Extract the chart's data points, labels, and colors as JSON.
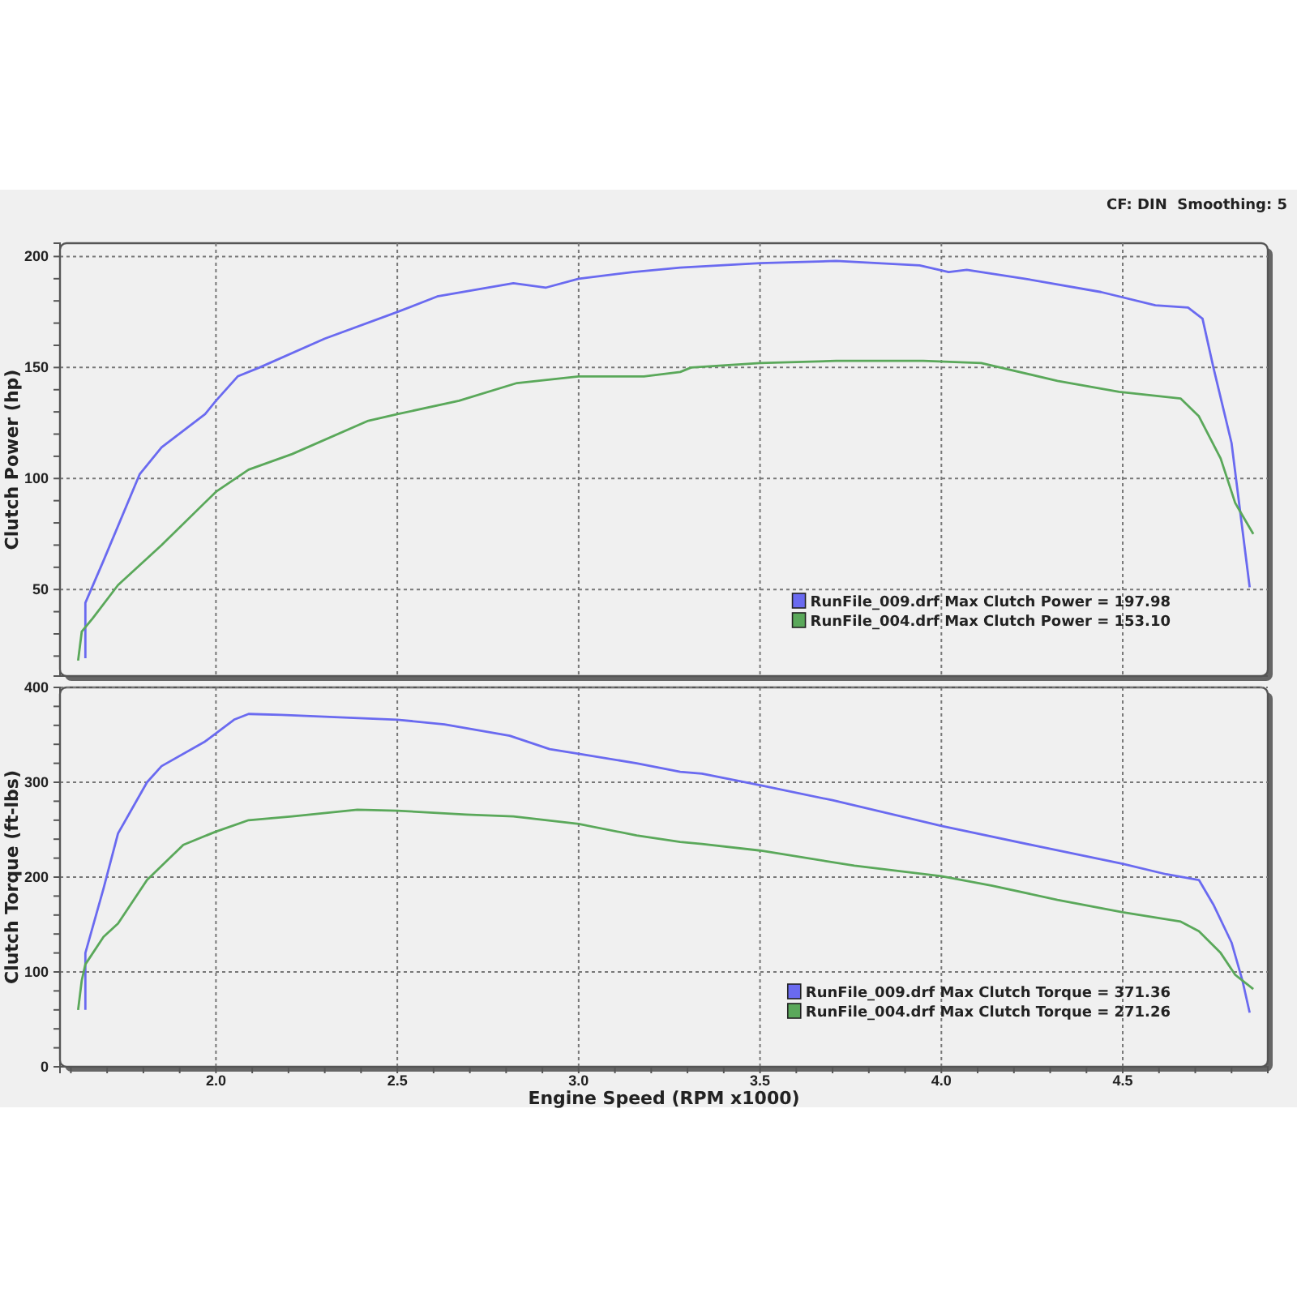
{
  "chart_data": [
    {
      "type": "line",
      "ylabel": "Clutch Power (hp)",
      "annotations": [
        "CF: DIN  Smoothing: 5"
      ],
      "xlim": [
        1.57,
        4.9
      ],
      "ylim": [
        11,
        206
      ],
      "xticks": [
        2,
        2.5,
        3,
        3.5,
        4,
        4.5
      ],
      "yticks": [
        {
          "value": 20,
          "label": null
        },
        {
          "value": 30,
          "label": null
        },
        {
          "value": 40,
          "label": null
        },
        50,
        {
          "value": 60,
          "label": null
        },
        {
          "value": 70,
          "label": null
        },
        {
          "value": 80,
          "label": null
        },
        {
          "value": 90,
          "label": null
        },
        100,
        {
          "value": 110,
          "label": null
        },
        {
          "value": 120,
          "label": null
        },
        {
          "value": 130,
          "label": null
        },
        {
          "value": 140,
          "label": null
        },
        150,
        {
          "value": 160,
          "label": null
        },
        {
          "value": 170,
          "label": null
        },
        {
          "value": 180,
          "label": null
        },
        {
          "value": 190,
          "label": null
        },
        200
      ],
      "tick_labels": "y",
      "grid": true,
      "legend": "bottom right",
      "series": [
        {
          "name": "RunFile_009.drf Max Clutch Power = 197.98",
          "color": "#6a6af0",
          "x": [
            1.64,
            1.64,
            1.69,
            1.79,
            1.85,
            1.97,
            2.0,
            2.06,
            2.12,
            2.3,
            2.5,
            2.61,
            2.82,
            2.91,
            3.0,
            3.15,
            3.28,
            3.5,
            3.71,
            3.94,
            4.02,
            4.07,
            4.23,
            4.44,
            4.59,
            4.68,
            4.72,
            4.75,
            4.8,
            4.85
          ],
          "values": [
            19,
            44,
            63,
            102,
            114,
            129,
            135,
            146,
            150,
            163,
            175,
            182,
            188,
            186,
            190,
            193,
            195,
            197,
            198,
            196,
            193,
            194,
            190,
            184,
            178,
            177,
            172,
            150,
            116,
            51
          ]
        },
        {
          "name": "RunFile_004.drf Max Clutch Power = 153.10",
          "color": "#5aa85a",
          "x": [
            1.62,
            1.63,
            1.66,
            1.73,
            1.85,
            2.0,
            2.09,
            2.21,
            2.42,
            2.5,
            2.67,
            2.83,
            3.0,
            3.13,
            3.18,
            3.28,
            3.31,
            3.5,
            3.71,
            3.95,
            4.11,
            4.32,
            4.49,
            4.66,
            4.71,
            4.77,
            4.81,
            4.86
          ],
          "values": [
            18,
            31,
            37,
            52,
            70,
            94,
            104,
            111,
            126,
            129,
            135,
            143,
            146,
            146,
            146,
            148,
            150,
            152,
            153,
            153,
            152,
            144,
            139,
            136,
            128,
            109,
            89,
            75
          ]
        }
      ]
    },
    {
      "type": "line",
      "ylabel": "Clutch Torque (ft-lbs)",
      "xlabel": "Engine Speed (RPM x1000)",
      "xlim": [
        1.57,
        4.9
      ],
      "ylim": [
        0,
        400
      ],
      "xticks": [
        {
          "value": 1.6,
          "label": null
        },
        {
          "value": 1.7,
          "label": null
        },
        {
          "value": 1.8,
          "label": null
        },
        {
          "value": 1.9,
          "label": null
        },
        {
          "value": 2,
          "label": "2.0"
        },
        {
          "value": 2.1,
          "label": null
        },
        {
          "value": 2.2,
          "label": null
        },
        {
          "value": 2.3,
          "label": null
        },
        {
          "value": 2.4,
          "label": null
        },
        2.5,
        {
          "value": 2.6,
          "label": null
        },
        {
          "value": 2.7,
          "label": null
        },
        {
          "value": 2.8,
          "label": null
        },
        {
          "value": 2.9,
          "label": null
        },
        {
          "value": 3,
          "label": "3.0"
        },
        {
          "value": 3.1,
          "label": null
        },
        {
          "value": 3.2,
          "label": null
        },
        {
          "value": 3.3,
          "label": null
        },
        {
          "value": 3.4,
          "label": null
        },
        3.5,
        {
          "value": 3.6,
          "label": null
        },
        {
          "value": 3.7,
          "label": null
        },
        {
          "value": 3.8,
          "label": null
        },
        {
          "value": 3.9,
          "label": null
        },
        {
          "value": 4,
          "label": "4.0"
        },
        {
          "value": 4.1,
          "label": null
        },
        {
          "value": 4.2,
          "label": null
        },
        {
          "value": 4.3,
          "label": null
        },
        {
          "value": 4.4,
          "label": null
        },
        4.5,
        {
          "value": 4.6,
          "label": null
        },
        {
          "value": 4.7,
          "label": null
        },
        {
          "value": 4.8,
          "label": null
        }
      ],
      "yticks": [
        0,
        {
          "value": 20,
          "label": null
        },
        {
          "value": 40,
          "label": null
        },
        {
          "value": 60,
          "label": null
        },
        {
          "value": 80,
          "label": null
        },
        100,
        {
          "value": 120,
          "label": null
        },
        {
          "value": 140,
          "label": null
        },
        {
          "value": 160,
          "label": null
        },
        {
          "value": 180,
          "label": null
        },
        200,
        {
          "value": 220,
          "label": null
        },
        {
          "value": 240,
          "label": null
        },
        {
          "value": 260,
          "label": null
        },
        {
          "value": 280,
          "label": null
        },
        300,
        {
          "value": 320,
          "label": null
        },
        {
          "value": 340,
          "label": null
        },
        {
          "value": 360,
          "label": null
        },
        {
          "value": 380,
          "label": null
        },
        400
      ],
      "grid": true,
      "legend": "bottom right",
      "series": [
        {
          "name": "RunFile_009.drf Max Clutch Torque = 371.36",
          "color": "#6a6af0",
          "x": [
            1.64,
            1.64,
            1.69,
            1.73,
            1.81,
            1.85,
            1.97,
            2.05,
            2.09,
            2.18,
            2.5,
            2.63,
            2.81,
            2.92,
            3.0,
            3.16,
            3.28,
            3.34,
            3.5,
            3.7,
            4.0,
            4.26,
            4.5,
            4.62,
            4.71,
            4.75,
            4.8,
            4.83,
            4.85
          ],
          "values": [
            60,
            120,
            188,
            246,
            300,
            317,
            343,
            366,
            372,
            371,
            366,
            361,
            349,
            335,
            330,
            320,
            311,
            309,
            297,
            281,
            254,
            233,
            214,
            203,
            197,
            171,
            131,
            91,
            57
          ]
        },
        {
          "name": "RunFile_004.drf Max Clutch Torque = 271.26",
          "color": "#5aa85a",
          "x": [
            1.62,
            1.63,
            1.64,
            1.69,
            1.73,
            1.81,
            1.91,
            2.0,
            2.09,
            2.21,
            2.39,
            2.5,
            2.69,
            2.82,
            3.0,
            3.16,
            3.28,
            3.34,
            3.5,
            3.76,
            4.0,
            4.14,
            4.32,
            4.5,
            4.66,
            4.71,
            4.77,
            4.81,
            4.86
          ],
          "values": [
            60,
            91,
            108,
            137,
            151,
            197,
            234,
            248,
            260,
            264,
            271,
            270,
            266,
            264,
            256,
            244,
            237,
            235,
            228,
            212,
            201,
            191,
            176,
            163,
            153,
            143,
            120,
            97,
            82
          ]
        }
      ]
    }
  ]
}
